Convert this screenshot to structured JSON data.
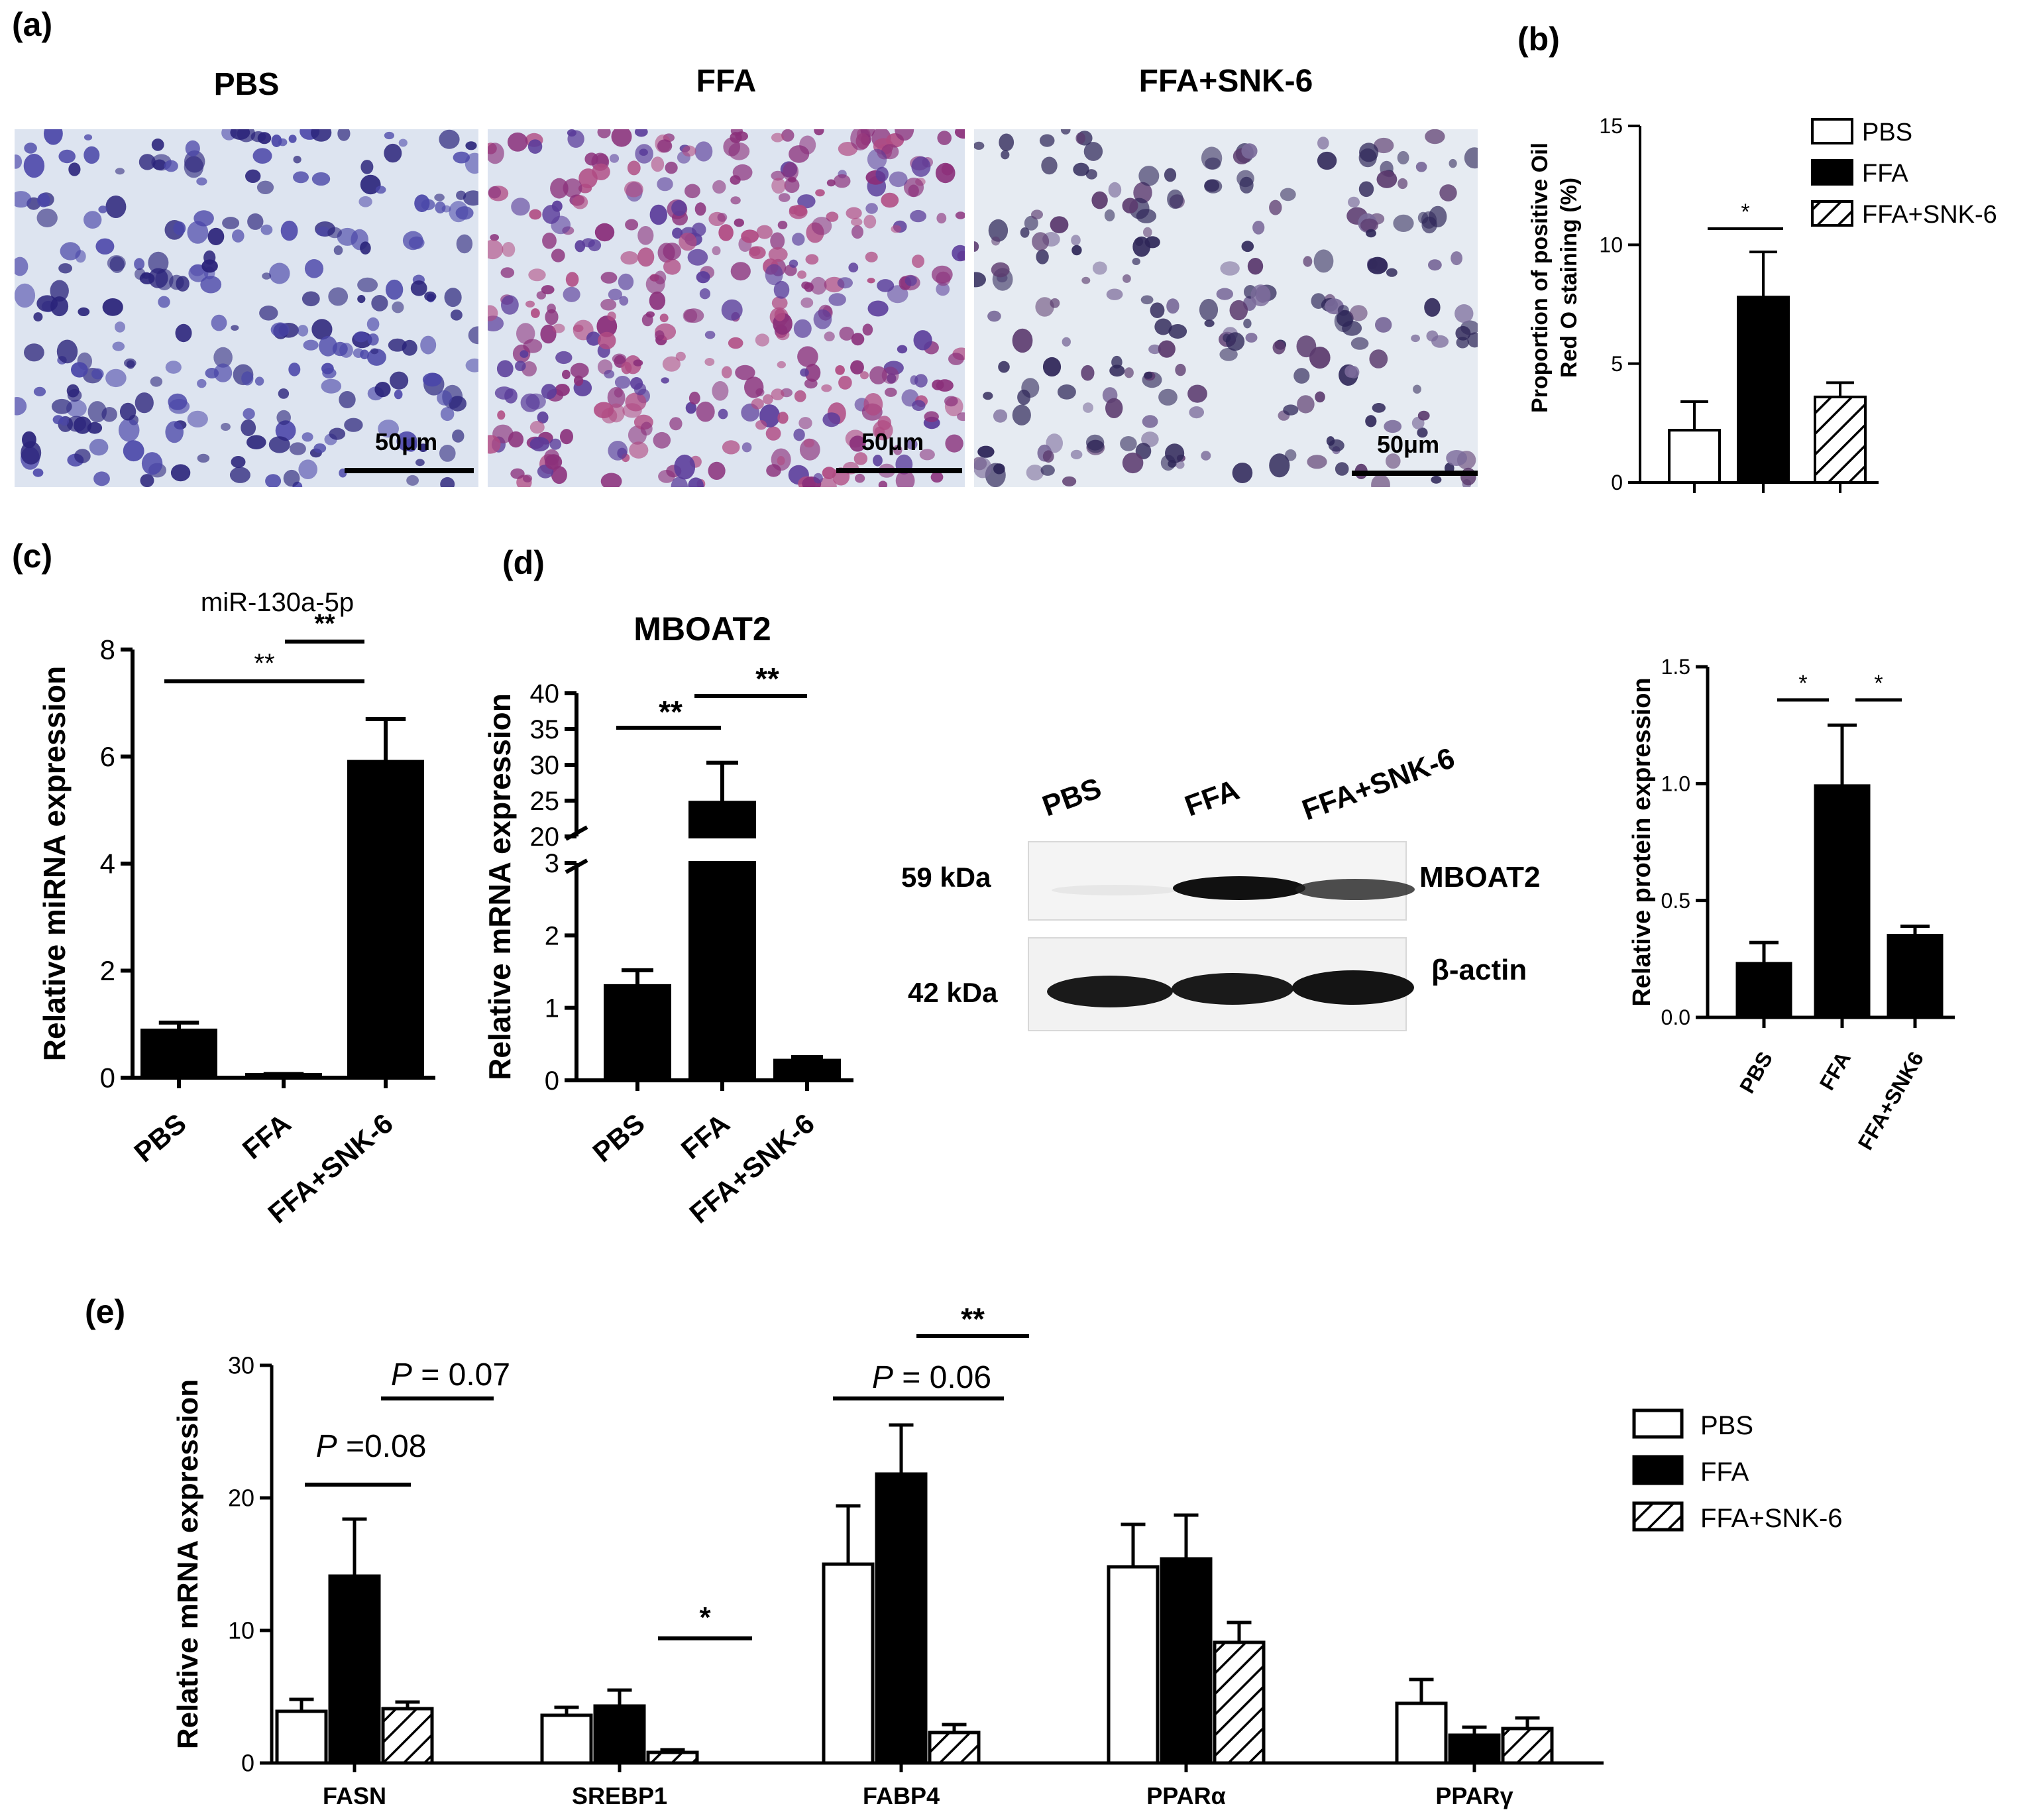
{
  "panel_a": {
    "label": "(a)",
    "images": [
      {
        "title": "PBS",
        "scale_bar": "50μm"
      },
      {
        "title": "FFA",
        "scale_bar": "50μm"
      },
      {
        "title": "FFA+SNK-6",
        "scale_bar": "50μm"
      }
    ]
  },
  "panel_c_label": "(c)",
  "panel_d_label": "(d)",
  "panel_e_label": "(e)",
  "western_blot": {
    "lanes": [
      "PBS",
      "FFA",
      "FFA+SNK-6"
    ],
    "rows": [
      {
        "mw": "59 kDa",
        "protein": "MBOAT2",
        "band_intensity": [
          0.05,
          1.0,
          0.7
        ]
      },
      {
        "mw": "42 kDa",
        "protein": "β-actin",
        "band_intensity": [
          1.0,
          1.0,
          1.0
        ]
      }
    ]
  },
  "chart_data": [
    {
      "id": "b",
      "panel_label": "(b)",
      "type": "bar",
      "title": "",
      "ylabel": "Proportion of positive Oil Red O staining (%)",
      "ylim": [
        0,
        15
      ],
      "yticks": [
        0,
        5,
        10,
        15
      ],
      "categories": [
        "PBS",
        "FFA",
        "FFA+SNK-6"
      ],
      "show_category_labels": false,
      "values": [
        2.2,
        7.8,
        3.6
      ],
      "errors": [
        1.2,
        1.9,
        0.6
      ],
      "fills": [
        "white",
        "black",
        "hatch"
      ],
      "legend": [
        "PBS",
        "FFA",
        "FFA+SNK-6"
      ],
      "legend_position": "top-right",
      "significance": [
        {
          "from": 0,
          "to": 1,
          "label": "*"
        }
      ]
    },
    {
      "id": "c",
      "type": "bar",
      "title": "miR-130a-5p",
      "ylabel": "Relative miRNA expression",
      "ylim": [
        0,
        8
      ],
      "yticks": [
        0,
        2,
        4,
        6,
        8
      ],
      "categories": [
        "PBS",
        "FFA",
        "FFA+SNK-6"
      ],
      "values": [
        0.88,
        0.05,
        5.9
      ],
      "errors": [
        0.15,
        0.02,
        0.8
      ],
      "fills": [
        "black",
        "black",
        "black"
      ],
      "significance": [
        {
          "from": 0,
          "to": 2,
          "label": "**"
        },
        {
          "from": 1,
          "to": 2,
          "label": "**"
        }
      ]
    },
    {
      "id": "d_mrna",
      "type": "bar",
      "title": "MBOAT2",
      "ylabel": "Relative mRNA expression",
      "ylim": [
        0,
        40
      ],
      "axis_break": [
        3,
        20
      ],
      "yticks": [
        0,
        1,
        2,
        3,
        20,
        25,
        30,
        35,
        40
      ],
      "categories": [
        "PBS",
        "FFA",
        "FFA+SNK-6"
      ],
      "values": [
        1.3,
        24.7,
        0.27
      ],
      "errors": [
        0.22,
        5.6,
        0.05
      ],
      "fills": [
        "black",
        "black",
        "black"
      ],
      "significance": [
        {
          "from": 0,
          "to": 1,
          "label": "**"
        },
        {
          "from": 1,
          "to": 2,
          "label": "**"
        }
      ]
    },
    {
      "id": "d_protein",
      "type": "bar",
      "title": "",
      "ylabel": "Relative protein expression",
      "ylim": [
        0,
        1.5
      ],
      "yticks": [
        "0.0",
        "0.5",
        "1.0",
        "1.5"
      ],
      "categories": [
        "PBS",
        "FFA",
        "FFA+SNK6"
      ],
      "values": [
        0.23,
        0.99,
        0.35
      ],
      "errors": [
        0.09,
        0.26,
        0.04
      ],
      "fills": [
        "black",
        "black",
        "black"
      ],
      "significance": [
        {
          "from": 0,
          "to": 1,
          "label": "*"
        },
        {
          "from": 1,
          "to": 2,
          "label": "*"
        }
      ]
    },
    {
      "id": "e",
      "type": "bar",
      "title": "",
      "ylabel": "Relative mRNA expression",
      "ylim": [
        0,
        30
      ],
      "yticks": [
        0,
        10,
        20,
        30
      ],
      "categories": [
        "FASN",
        "SREBP1",
        "FABP4",
        "PPARα",
        "PPARγ"
      ],
      "series": [
        {
          "name": "PBS",
          "fill": "white",
          "values": [
            3.9,
            3.6,
            15.0,
            14.8,
            4.5
          ],
          "errors": [
            0.9,
            0.6,
            4.4,
            3.2,
            1.8
          ]
        },
        {
          "name": "FFA",
          "fill": "black",
          "values": [
            14.1,
            4.3,
            21.8,
            15.4,
            2.1
          ],
          "errors": [
            4.3,
            1.2,
            3.7,
            3.3,
            0.6
          ]
        },
        {
          "name": "FFA+SNK-6",
          "fill": "hatch",
          "values": [
            4.1,
            0.8,
            2.3,
            9.1,
            2.6
          ],
          "errors": [
            0.5,
            0.2,
            0.6,
            1.5,
            0.8
          ]
        }
      ],
      "legend_position": "right",
      "significance": [
        {
          "category": 0,
          "from": 0,
          "to": 1,
          "label": "P =0.08",
          "italic_p": true
        },
        {
          "category": 0,
          "from": 1,
          "to": 2,
          "label": "P = 0.07",
          "italic_p": true
        },
        {
          "category": 1,
          "from": 1,
          "to": 2,
          "label": "*"
        },
        {
          "category": 2,
          "from": 0,
          "to": 1,
          "label": "P = 0.06",
          "italic_p": true
        },
        {
          "category": 2,
          "from": 1,
          "to": 2,
          "label": "**"
        }
      ]
    }
  ]
}
